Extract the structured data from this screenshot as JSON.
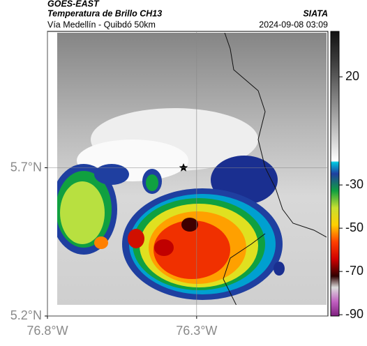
{
  "header": {
    "satellite": "GOES-EAST",
    "product": "Temperatura de Brillo CH13",
    "source": "SIATA",
    "region": "Vía Medellín - Quibdó 50km",
    "timestamp": "2024-09-08 03:09"
  },
  "chart_data": {
    "type": "map",
    "xlim": [
      -76.8,
      -75.86
    ],
    "ylim": [
      5.2,
      6.16
    ],
    "xticks": [
      {
        "value": -76.8,
        "label": "76.8°W"
      },
      {
        "value": -76.3,
        "label": "76.3°W"
      }
    ],
    "yticks": [
      {
        "value": 5.2,
        "label": "5.2°N"
      },
      {
        "value": 5.7,
        "label": "5.7°N"
      }
    ],
    "grid": true,
    "colorbar": {
      "lim": [
        41,
        -90.6
      ],
      "ticks": [
        20,
        -30,
        -50,
        -70,
        -90
      ]
    }
  }
}
